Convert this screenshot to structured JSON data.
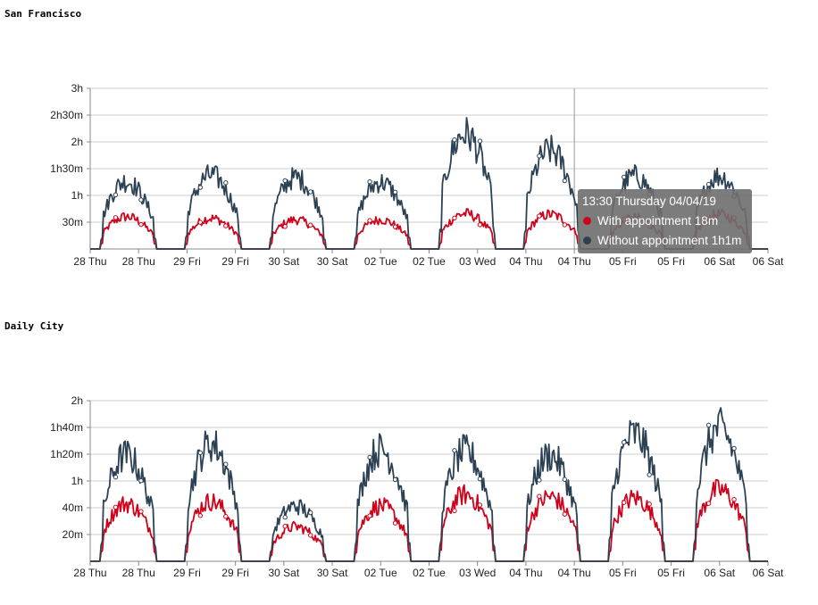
{
  "page": {
    "colors": {
      "with": "#d0021b",
      "without": "#2c4254",
      "grid": "#cccccc"
    }
  },
  "chart_data": [
    {
      "type": "line",
      "title": "San Francisco",
      "x_ticks": [
        "28 Thu",
        "28 Thu",
        "29 Fri",
        "29 Fri",
        "30 Sat",
        "30 Sat",
        "02 Tue",
        "02 Tue",
        "03 Wed",
        "04 Thu",
        "04 Thu",
        "05 Fri",
        "05 Fri",
        "06 Sat",
        "06 Sat"
      ],
      "y_ticks": [
        {
          "label": "30m",
          "value": 30
        },
        {
          "label": "1h",
          "value": 60
        },
        {
          "label": "1h30m",
          "value": 90
        },
        {
          "label": "2h",
          "value": 120
        },
        {
          "label": "2h30m",
          "value": 150
        },
        {
          "label": "3h",
          "value": 180
        }
      ],
      "ylim": [
        0,
        180
      ],
      "grid": true,
      "series": [
        {
          "name": "With appointment",
          "color": "#d0021b",
          "days": [
            {
              "peak": 42
            },
            {
              "peak": 40
            },
            {
              "peak": 38
            },
            {
              "peak": 38
            },
            {
              "peak": 46
            },
            {
              "peak": 45
            },
            {
              "peak": 40
            },
            {
              "peak": 45
            }
          ]
        },
        {
          "name": "Without appointment",
          "color": "#2c4254",
          "days": [
            {
              "peak": 88
            },
            {
              "peak": 96
            },
            {
              "peak": 93
            },
            {
              "peak": 87
            },
            {
              "peak": 150
            },
            {
              "peak": 128
            },
            {
              "peak": 95
            },
            {
              "peak": 95
            }
          ]
        }
      ],
      "hover": {
        "x_tick_index": 10
      },
      "tooltip": {
        "title": "13:30 Thursday 04/04/19",
        "rows": [
          {
            "label": "With appointment 18m",
            "color": "#d0021b"
          },
          {
            "label": "Without appointment 1h1m",
            "color": "#2c4254"
          }
        ]
      }
    },
    {
      "type": "line",
      "title": "Daily City",
      "x_ticks": [
        "28 Thu",
        "28 Thu",
        "29 Fri",
        "29 Fri",
        "30 Sat",
        "30 Sat",
        "02 Tue",
        "02 Tue",
        "03 Wed",
        "04 Thu",
        "04 Thu",
        "05 Fri",
        "05 Fri",
        "06 Sat",
        "06 Sat"
      ],
      "y_ticks": [
        {
          "label": "20m",
          "value": 20
        },
        {
          "label": "40m",
          "value": 40
        },
        {
          "label": "1h",
          "value": 60
        },
        {
          "label": "1h20m",
          "value": 80
        },
        {
          "label": "1h40m",
          "value": 100
        },
        {
          "label": "2h",
          "value": 120
        }
      ],
      "ylim": [
        0,
        120
      ],
      "grid": true,
      "series": [
        {
          "name": "With appointment",
          "color": "#d0021b",
          "days": [
            {
              "peak": 50
            },
            {
              "peak": 52
            },
            {
              "peak": 30
            },
            {
              "peak": 48
            },
            {
              "peak": 58
            },
            {
              "peak": 56
            },
            {
              "peak": 55
            },
            {
              "peak": 62
            }
          ]
        },
        {
          "name": "Without appointment",
          "color": "#2c4254",
          "days": [
            {
              "peak": 92
            },
            {
              "peak": 102
            },
            {
              "peak": 48
            },
            {
              "peak": 97
            },
            {
              "peak": 95
            },
            {
              "peak": 92
            },
            {
              "peak": 110
            },
            {
              "peak": 115
            }
          ]
        }
      ]
    }
  ]
}
